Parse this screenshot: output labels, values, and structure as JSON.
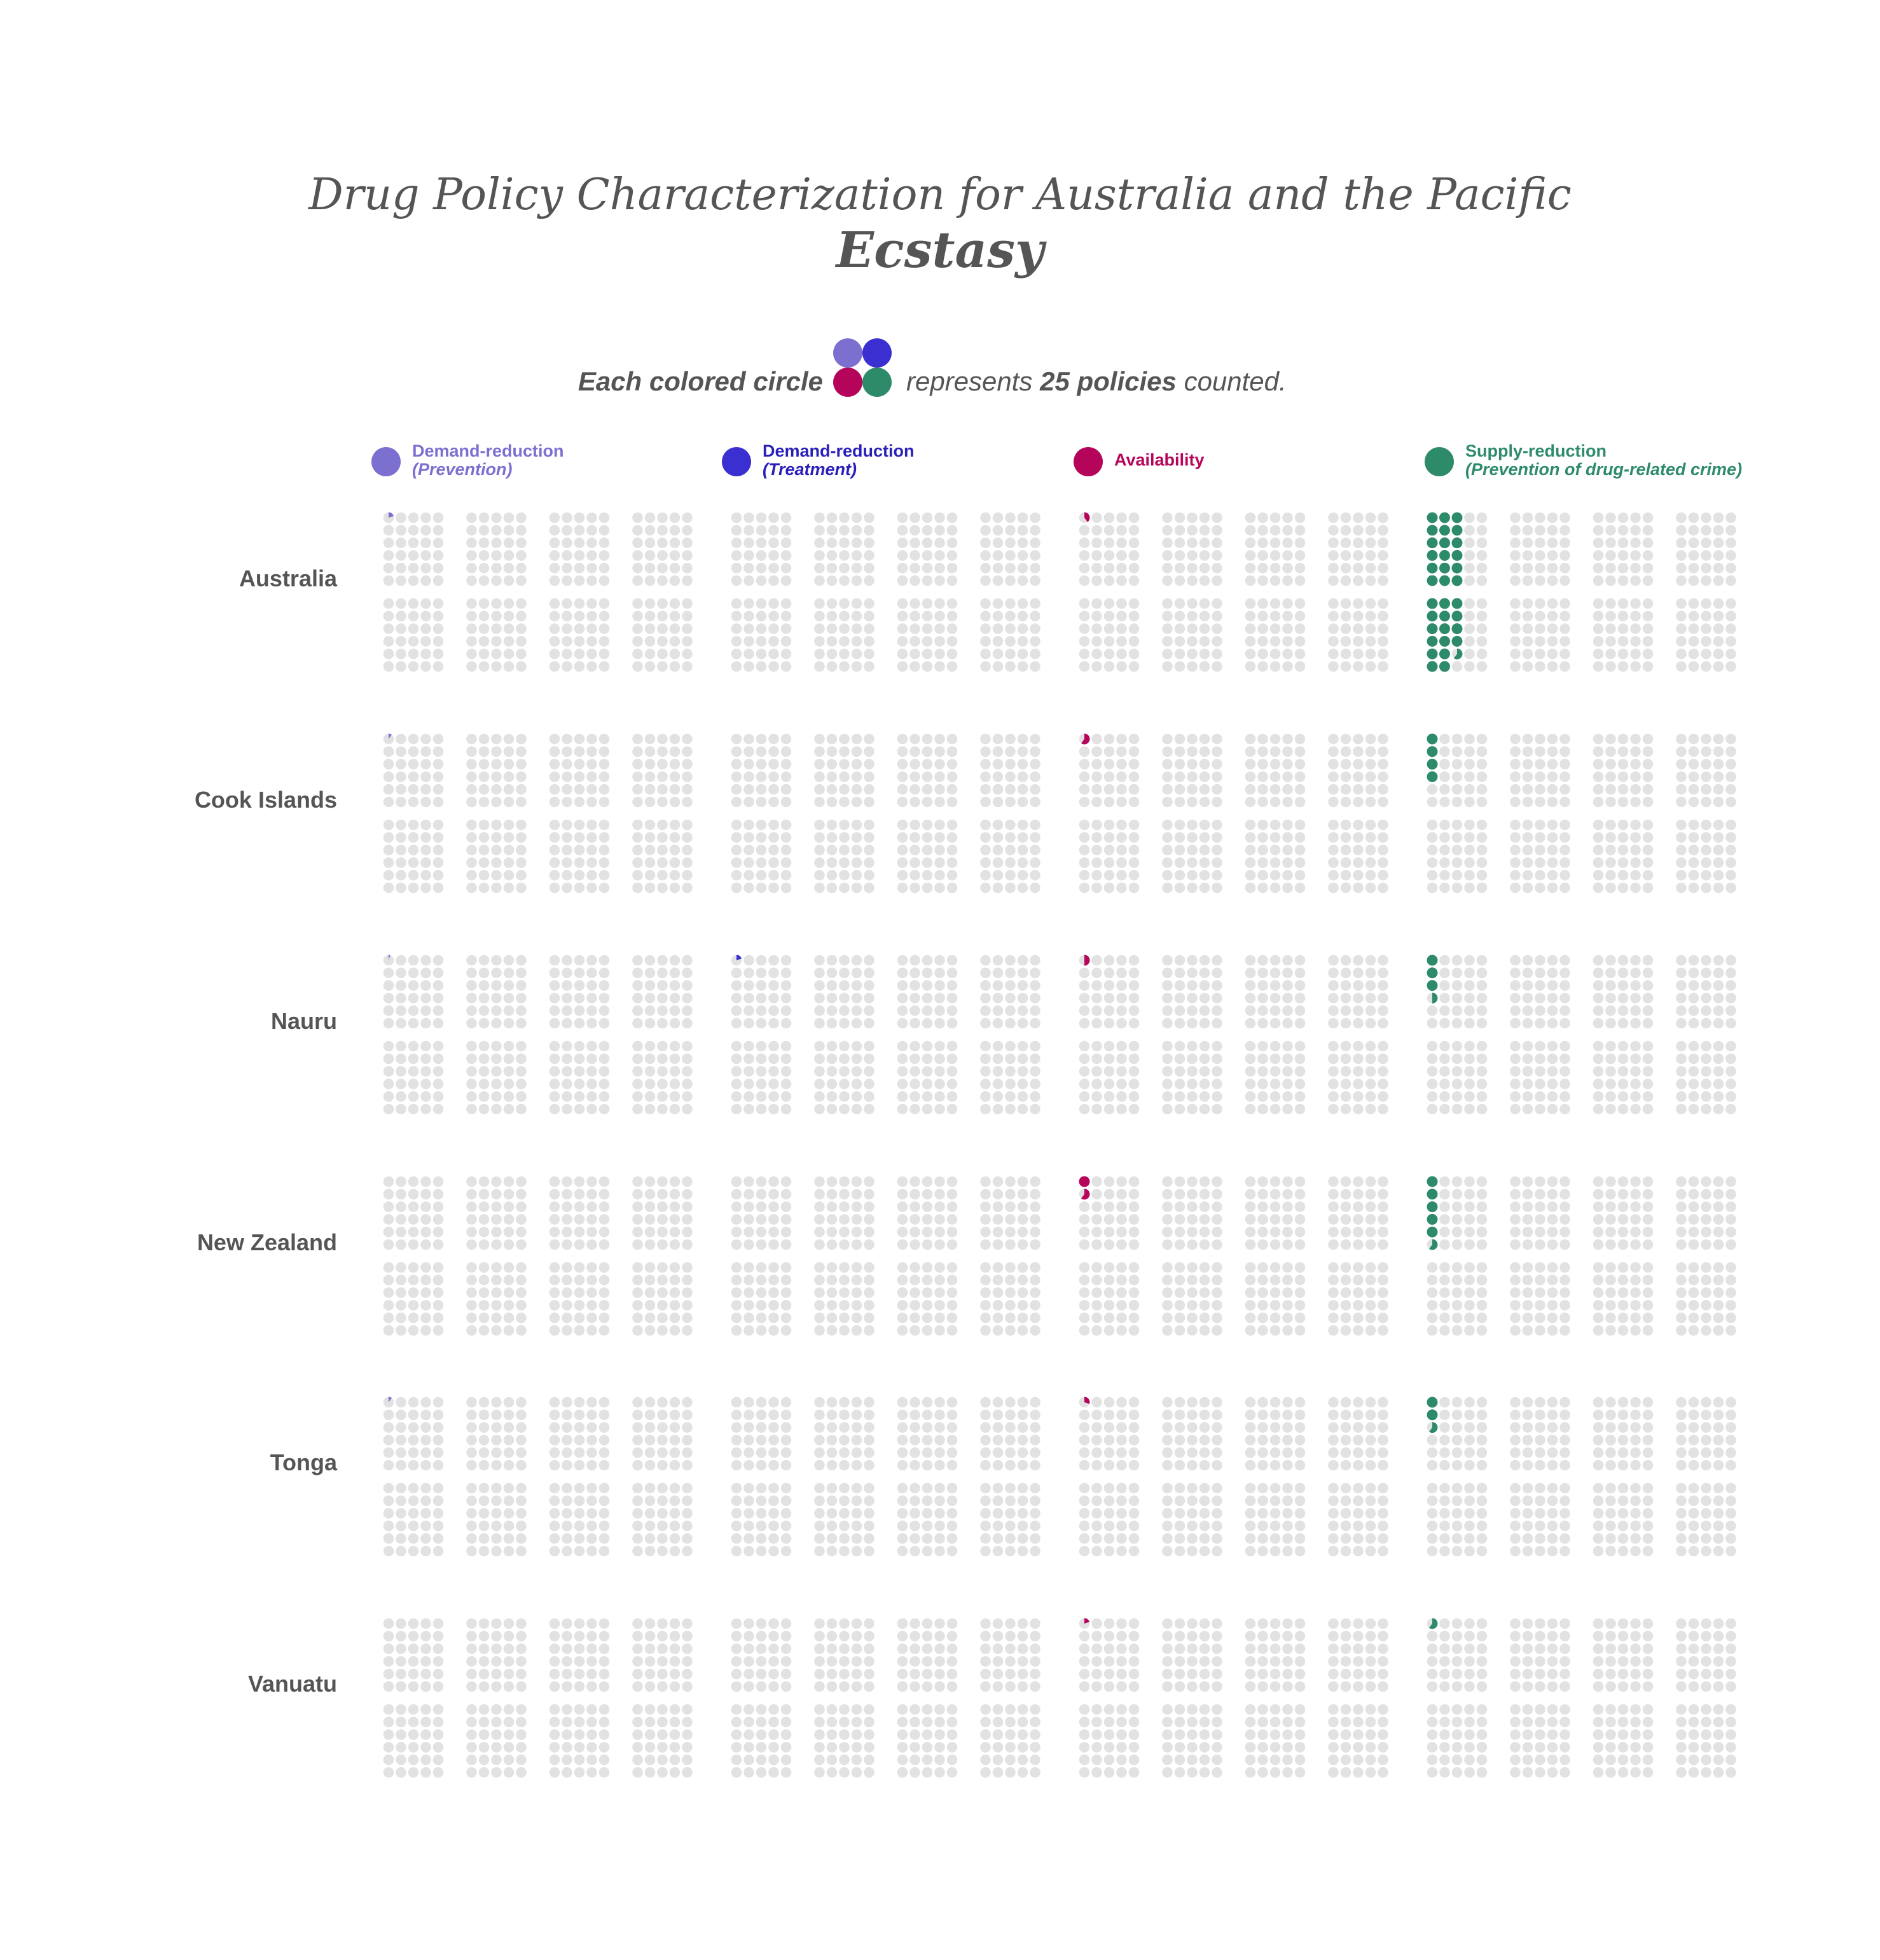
{
  "title": "Drug Policy Characterization for Australia and the Pacific",
  "subtitle": "Ecstasy",
  "note": {
    "left": "Each colored circle",
    "right_pre": "represents",
    "right_bold": "25 policies",
    "right_post": "counted."
  },
  "colors": {
    "prevention": "#7b6fd0",
    "treatment": "#3a2fd0",
    "availability": "#b5055a",
    "supply": "#2e8b6a",
    "empty": "#e2e2e2",
    "text": "#555555"
  },
  "legend": [
    {
      "key": "prevention",
      "line1": "Demand-reduction",
      "line2": "(Prevention)",
      "color": "#7b6fd0"
    },
    {
      "key": "treatment",
      "line1": "Demand-reduction",
      "line2": "(Treatment)",
      "color": "#3a2fd0"
    },
    {
      "key": "availability",
      "line1": "Availability",
      "line2": "",
      "color": "#b5055a"
    },
    {
      "key": "supply",
      "line1": "Supply-reduction",
      "line2": "(Prevention of drug-related crime)",
      "color": "#2e8b6a"
    }
  ],
  "chart_data": {
    "type": "waffle",
    "title": "Drug Policy Characterization for Australia and the Pacific",
    "subtitle": "Ecstasy",
    "unit": "Each colored circle represents 25 policies counted.",
    "categories": [
      "Australia",
      "Cook Islands",
      "Nauru",
      "New Zealand",
      "Tonga",
      "Vanuatu"
    ],
    "series": [
      {
        "name": "Demand-reduction (Prevention)",
        "key": "prevention",
        "circles": [
          0.2,
          0.1,
          0.05,
          0,
          0.1,
          0
        ]
      },
      {
        "name": "Demand-reduction (Treatment)",
        "key": "treatment",
        "circles": [
          0,
          0,
          0.2,
          0,
          0,
          0
        ]
      },
      {
        "name": "Availability",
        "key": "availability",
        "circles": [
          0.4,
          0.6,
          0.5,
          1.6,
          0.3,
          0.2
        ]
      },
      {
        "name": "Supply-reduction (Prevention of drug-related crime)",
        "key": "supply",
        "circles": [
          34.6,
          4,
          3.5,
          5.6,
          2.6,
          0.6
        ]
      }
    ]
  }
}
